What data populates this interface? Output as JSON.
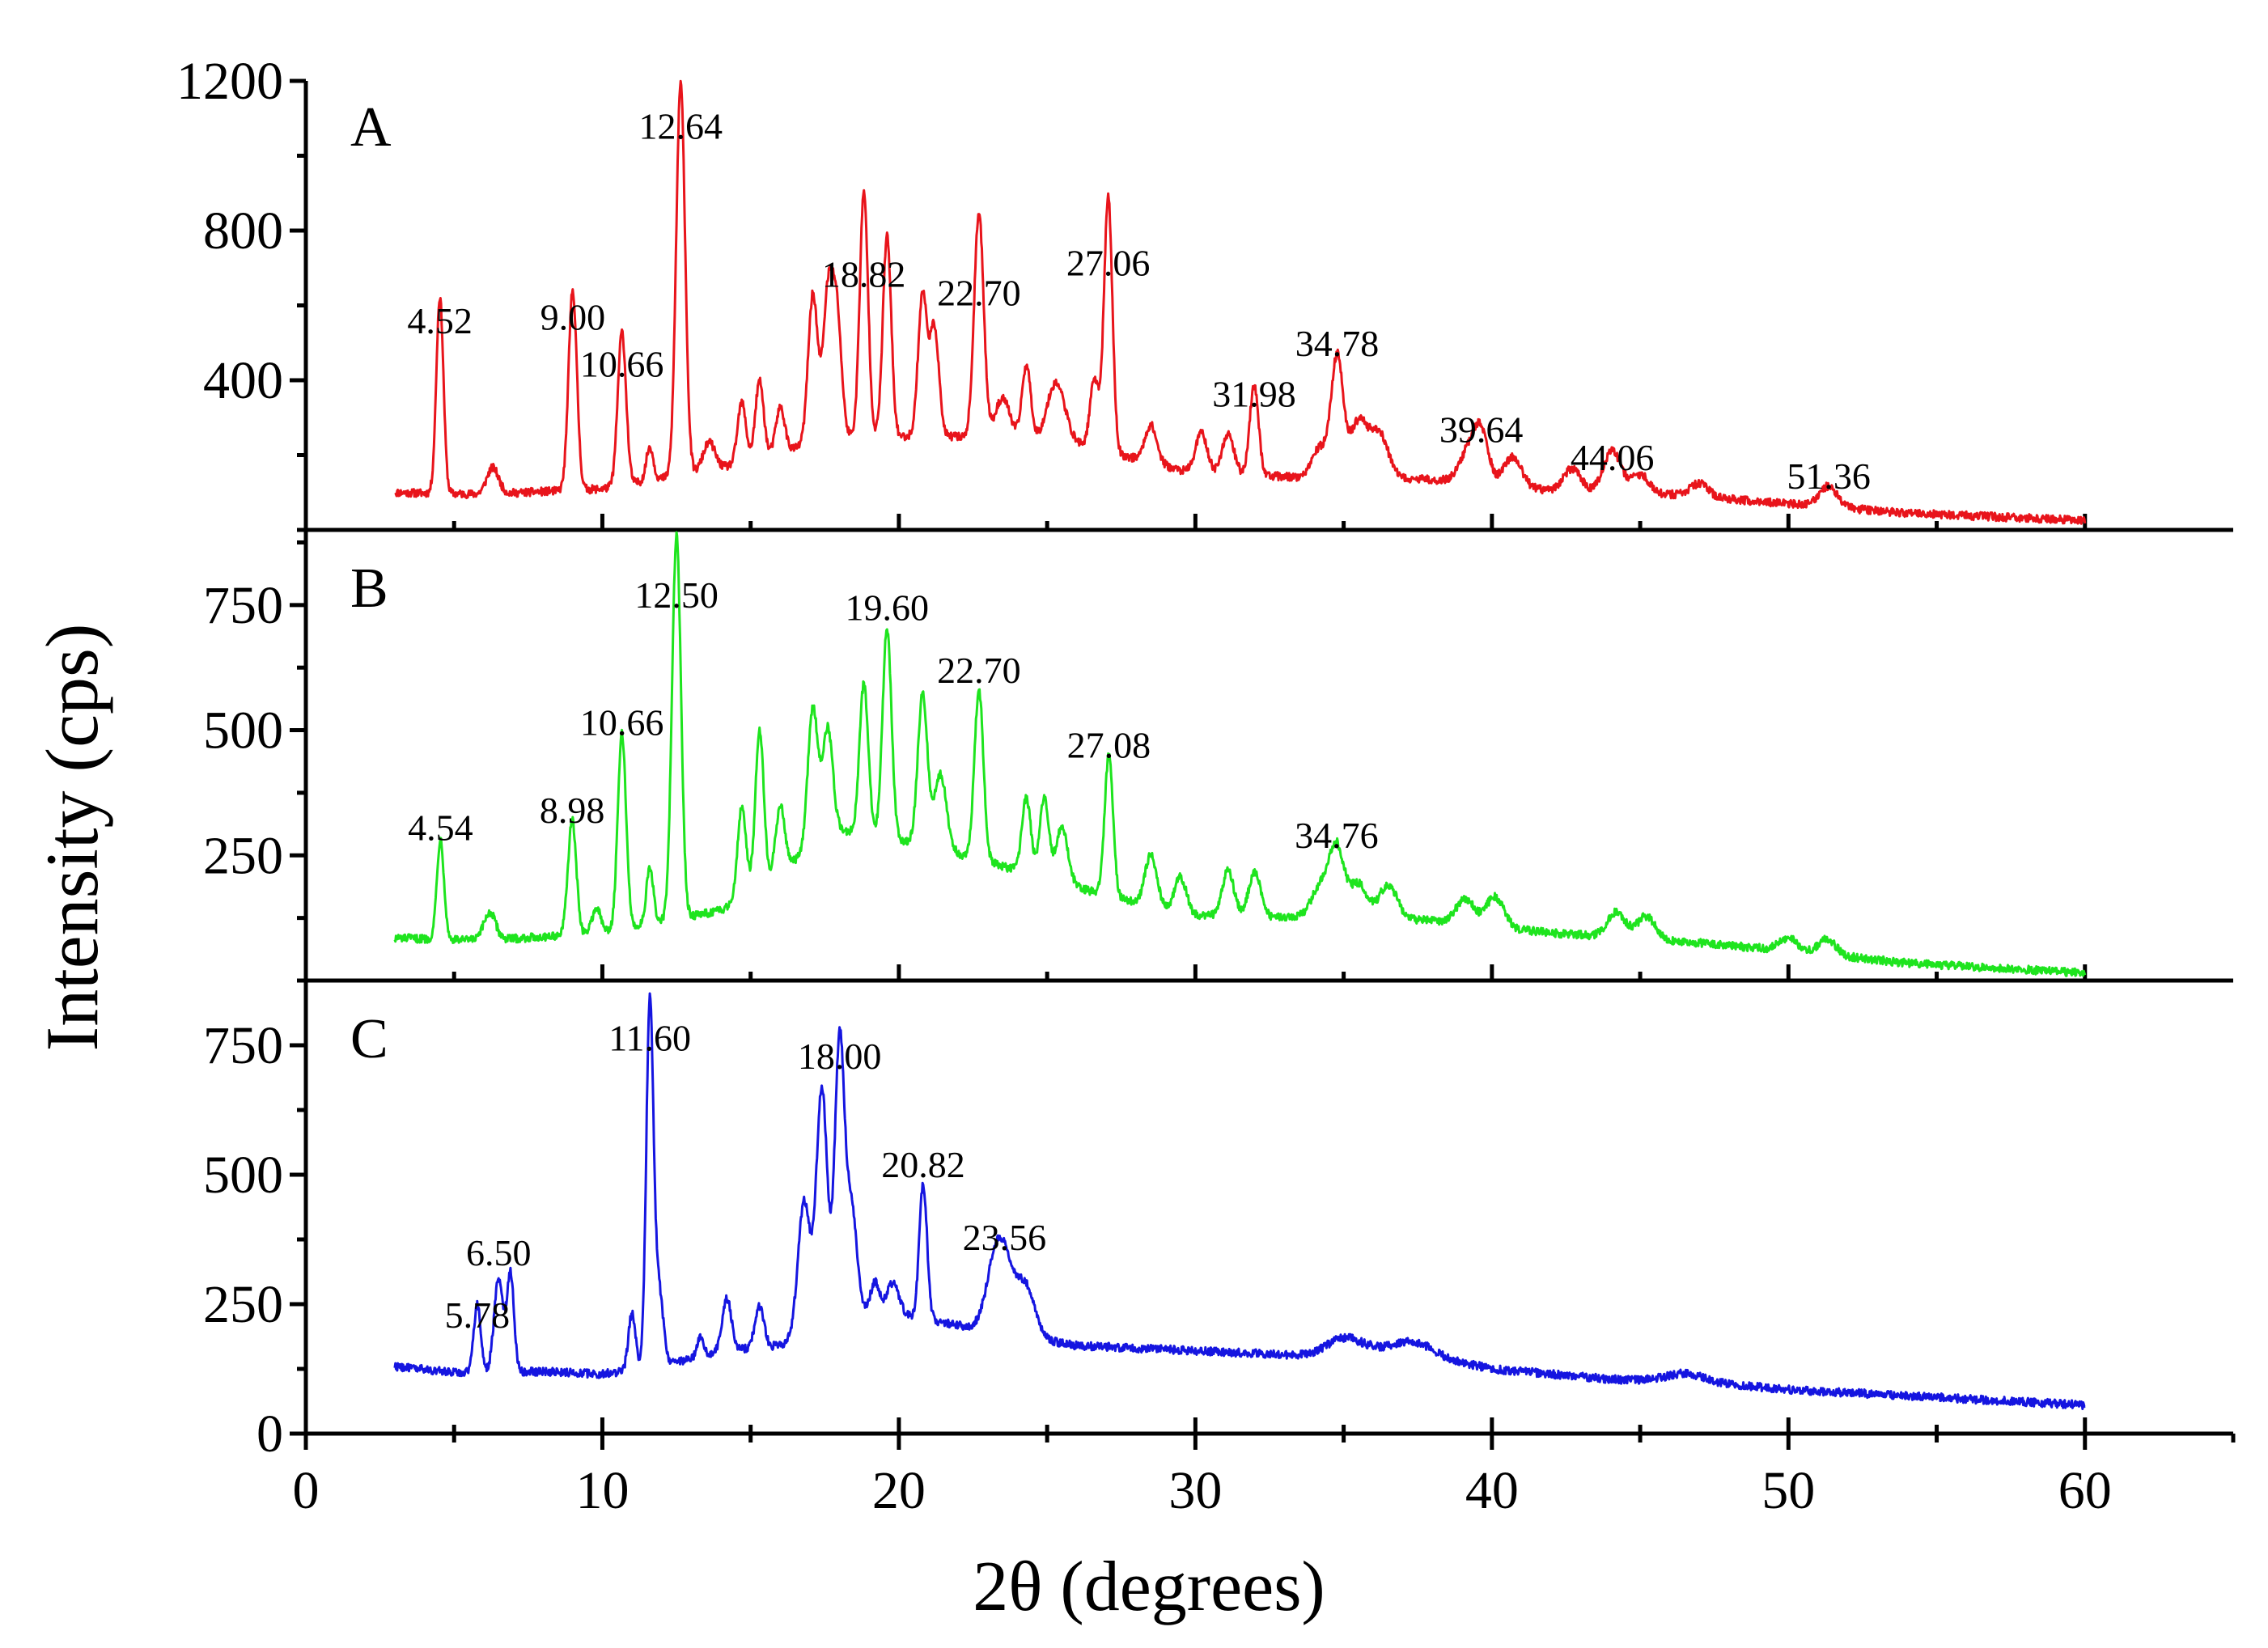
{
  "figure": {
    "xlabel": "2θ (degrees)",
    "ylabel": "Intensity (cps)",
    "x_ticks": [
      0,
      10,
      20,
      30,
      40,
      50,
      60
    ]
  },
  "chart_data": [
    {
      "type": "line",
      "panel": "A",
      "color": "#e8141b",
      "xlim": [
        0,
        65
      ],
      "ylim": [
        0,
        1200
      ],
      "y_ticks": [
        400,
        800,
        1200
      ],
      "xlabel": "2θ (degrees)",
      "ylabel": "Intensity (cps)",
      "baseline": [
        [
          3,
          100
        ],
        [
          6,
          95
        ],
        [
          10,
          110
        ],
        [
          14,
          165
        ],
        [
          18,
          250
        ],
        [
          22,
          250
        ],
        [
          26,
          230
        ],
        [
          30,
          150
        ],
        [
          34,
          140
        ],
        [
          38,
          135
        ],
        [
          42,
          105
        ],
        [
          46,
          95
        ],
        [
          50,
          70
        ],
        [
          54,
          45
        ],
        [
          57,
          35
        ],
        [
          60,
          25
        ]
      ],
      "peaks": [
        [
          4.52,
          525,
          0.12
        ],
        [
          6.3,
          70,
          0.2
        ],
        [
          9.0,
          535,
          0.14
        ],
        [
          10.66,
          410,
          0.14
        ],
        [
          11.6,
          90,
          0.12
        ],
        [
          12.64,
          1045,
          0.15
        ],
        [
          13.6,
          75,
          0.2
        ],
        [
          14.7,
          160,
          0.14
        ],
        [
          15.3,
          205,
          0.14
        ],
        [
          16.0,
          120,
          0.15
        ],
        [
          17.1,
          400,
          0.16
        ],
        [
          17.6,
          370,
          0.16
        ],
        [
          17.9,
          330,
          0.16
        ],
        [
          18.82,
          650,
          0.14
        ],
        [
          19.6,
          535,
          0.14
        ],
        [
          20.8,
          380,
          0.15
        ],
        [
          21.2,
          290,
          0.15
        ],
        [
          22.7,
          600,
          0.16
        ],
        [
          23.5,
          110,
          0.25
        ],
        [
          24.3,
          200,
          0.15
        ],
        [
          25.3,
          160,
          0.3
        ],
        [
          26.6,
          185,
          0.15
        ],
        [
          27.06,
          680,
          0.14
        ],
        [
          28.5,
          100,
          0.2
        ],
        [
          30.2,
          110,
          0.2
        ],
        [
          31.1,
          110,
          0.2
        ],
        [
          31.98,
          240,
          0.15
        ],
        [
          34.2,
          80,
          0.25
        ],
        [
          34.78,
          320,
          0.2
        ],
        [
          35.5,
          150,
          0.3
        ],
        [
          36.2,
          120,
          0.3
        ],
        [
          39.2,
          80,
          0.3
        ],
        [
          39.64,
          130,
          0.25
        ],
        [
          40.7,
          80,
          0.3
        ],
        [
          42.7,
          60,
          0.3
        ],
        [
          44.06,
          110,
          0.3
        ],
        [
          45.0,
          50,
          0.3
        ],
        [
          47.0,
          35,
          0.3
        ],
        [
          51.36,
          55,
          0.3
        ]
      ],
      "annotations": [
        {
          "label": "4.52",
          "x": 4.52,
          "y": 525
        },
        {
          "label": "9.00",
          "x": 9.0,
          "y": 535
        },
        {
          "label": "10.66",
          "x": 10.66,
          "y": 410
        },
        {
          "label": "12.64",
          "x": 12.64,
          "y": 1045
        },
        {
          "label": "18.82",
          "x": 18.82,
          "y": 650
        },
        {
          "label": "22.70",
          "x": 22.7,
          "y": 600
        },
        {
          "label": "27.06",
          "x": 27.06,
          "y": 680
        },
        {
          "label": "31.98",
          "x": 31.98,
          "y": 330
        },
        {
          "label": "34.78",
          "x": 34.78,
          "y": 465
        },
        {
          "label": "39.64",
          "x": 39.64,
          "y": 235
        },
        {
          "label": "44.06",
          "x": 44.06,
          "y": 160
        },
        {
          "label": "51.36",
          "x": 51.36,
          "y": 110
        }
      ]
    },
    {
      "type": "line",
      "panel": "B",
      "color": "#1ee41e",
      "xlim": [
        0,
        65
      ],
      "ylim": [
        0,
        900
      ],
      "y_ticks": [
        250,
        500,
        750
      ],
      "xlabel": "2θ (degrees)",
      "ylabel": "Intensity (cps)",
      "baseline": [
        [
          3,
          85
        ],
        [
          6,
          80
        ],
        [
          10,
          95
        ],
        [
          14,
          140
        ],
        [
          18,
          300
        ],
        [
          21,
          270
        ],
        [
          24,
          220
        ],
        [
          27,
          170
        ],
        [
          30,
          130
        ],
        [
          34,
          125
        ],
        [
          38,
          120
        ],
        [
          42,
          95
        ],
        [
          46,
          80
        ],
        [
          50,
          60
        ],
        [
          54,
          35
        ],
        [
          57,
          25
        ],
        [
          60,
          15
        ]
      ],
      "peaks": [
        [
          4.54,
          200,
          0.12
        ],
        [
          6.2,
          55,
          0.2
        ],
        [
          8.98,
          230,
          0.14
        ],
        [
          9.8,
          50,
          0.15
        ],
        [
          10.66,
          390,
          0.14
        ],
        [
          11.6,
          110,
          0.12
        ],
        [
          12.5,
          765,
          0.15
        ],
        [
          14.7,
          180,
          0.14
        ],
        [
          15.3,
          310,
          0.14
        ],
        [
          16.0,
          130,
          0.15
        ],
        [
          17.1,
          280,
          0.17
        ],
        [
          17.6,
          220,
          0.17
        ],
        [
          18.82,
          300,
          0.15
        ],
        [
          19.6,
          420,
          0.15
        ],
        [
          20.8,
          300,
          0.16
        ],
        [
          21.4,
          150,
          0.2
        ],
        [
          22.7,
          340,
          0.15
        ],
        [
          24.3,
          150,
          0.15
        ],
        [
          24.9,
          160,
          0.15
        ],
        [
          25.5,
          110,
          0.2
        ],
        [
          27.08,
          280,
          0.14
        ],
        [
          28.5,
          100,
          0.2
        ],
        [
          29.5,
          70,
          0.2
        ],
        [
          31.1,
          90,
          0.2
        ],
        [
          32.0,
          90,
          0.2
        ],
        [
          34.2,
          60,
          0.3
        ],
        [
          34.76,
          140,
          0.25
        ],
        [
          35.5,
          70,
          0.3
        ],
        [
          36.5,
          70,
          0.3
        ],
        [
          39.1,
          50,
          0.3
        ],
        [
          40.1,
          60,
          0.3
        ],
        [
          44.2,
          50,
          0.3
        ],
        [
          45.2,
          45,
          0.3
        ],
        [
          50.0,
          25,
          0.3
        ],
        [
          51.3,
          30,
          0.3
        ]
      ],
      "annotations": [
        {
          "label": "4.54",
          "x": 4.54,
          "y": 280
        },
        {
          "label": "8.98",
          "x": 8.98,
          "y": 315
        },
        {
          "label": "10.66",
          "x": 10.66,
          "y": 490
        },
        {
          "label": "12.50",
          "x": 12.5,
          "y": 745
        },
        {
          "label": "19.60",
          "x": 19.6,
          "y": 720
        },
        {
          "label": "22.70",
          "x": 22.7,
          "y": 595
        },
        {
          "label": "27.08",
          "x": 27.08,
          "y": 445
        },
        {
          "label": "34.76",
          "x": 34.76,
          "y": 265
        }
      ]
    },
    {
      "type": "line",
      "panel": "C",
      "color": "#1515e0",
      "xlim": [
        0,
        65
      ],
      "ylim": [
        0,
        875
      ],
      "y_ticks": [
        0,
        250,
        500,
        750
      ],
      "xlabel": "2θ (degrees)",
      "ylabel": "Intensity (cps)",
      "baseline": [
        [
          3,
          130
        ],
        [
          5,
          118
        ],
        [
          8,
          120
        ],
        [
          10,
          115
        ],
        [
          12,
          130
        ],
        [
          14,
          160
        ],
        [
          16,
          170
        ],
        [
          18,
          240
        ],
        [
          20,
          230
        ],
        [
          22,
          210
        ],
        [
          24,
          190
        ],
        [
          26,
          170
        ],
        [
          30,
          160
        ],
        [
          34,
          150
        ],
        [
          36,
          160
        ],
        [
          38,
          150
        ],
        [
          40,
          125
        ],
        [
          44,
          105
        ],
        [
          47,
          100
        ],
        [
          50,
          85
        ],
        [
          55,
          70
        ],
        [
          60,
          55
        ]
      ],
      "peaks": [
        [
          5.78,
          130,
          0.12
        ],
        [
          6.5,
          180,
          0.15
        ],
        [
          6.9,
          190,
          0.12
        ],
        [
          11.0,
          110,
          0.12
        ],
        [
          11.6,
          700,
          0.12
        ],
        [
          11.9,
          150,
          0.15
        ],
        [
          13.3,
          40,
          0.1
        ],
        [
          14.2,
          100,
          0.15
        ],
        [
          15.3,
          80,
          0.15
        ],
        [
          16.8,
          250,
          0.2
        ],
        [
          17.4,
          450,
          0.18
        ],
        [
          18.0,
          520,
          0.16
        ],
        [
          18.4,
          200,
          0.18
        ],
        [
          19.2,
          60,
          0.15
        ],
        [
          19.8,
          60,
          0.2
        ],
        [
          20.82,
          260,
          0.13
        ],
        [
          23.2,
          80,
          0.3
        ],
        [
          23.56,
          130,
          0.35
        ],
        [
          24.3,
          90,
          0.3
        ],
        [
          35.0,
          30,
          0.6
        ],
        [
          37.3,
          25,
          0.6
        ],
        [
          46.5,
          15,
          0.6
        ]
      ],
      "annotations": [
        {
          "label": "5.78",
          "x": 5.78,
          "y": 205
        },
        {
          "label": "6.50",
          "x": 6.5,
          "y": 325
        },
        {
          "label": "11.60",
          "x": 11.6,
          "y": 740
        },
        {
          "label": "18.00",
          "x": 18.0,
          "y": 705
        },
        {
          "label": "20.82",
          "x": 20.82,
          "y": 495
        },
        {
          "label": "23.56",
          "x": 23.56,
          "y": 355
        }
      ]
    }
  ]
}
